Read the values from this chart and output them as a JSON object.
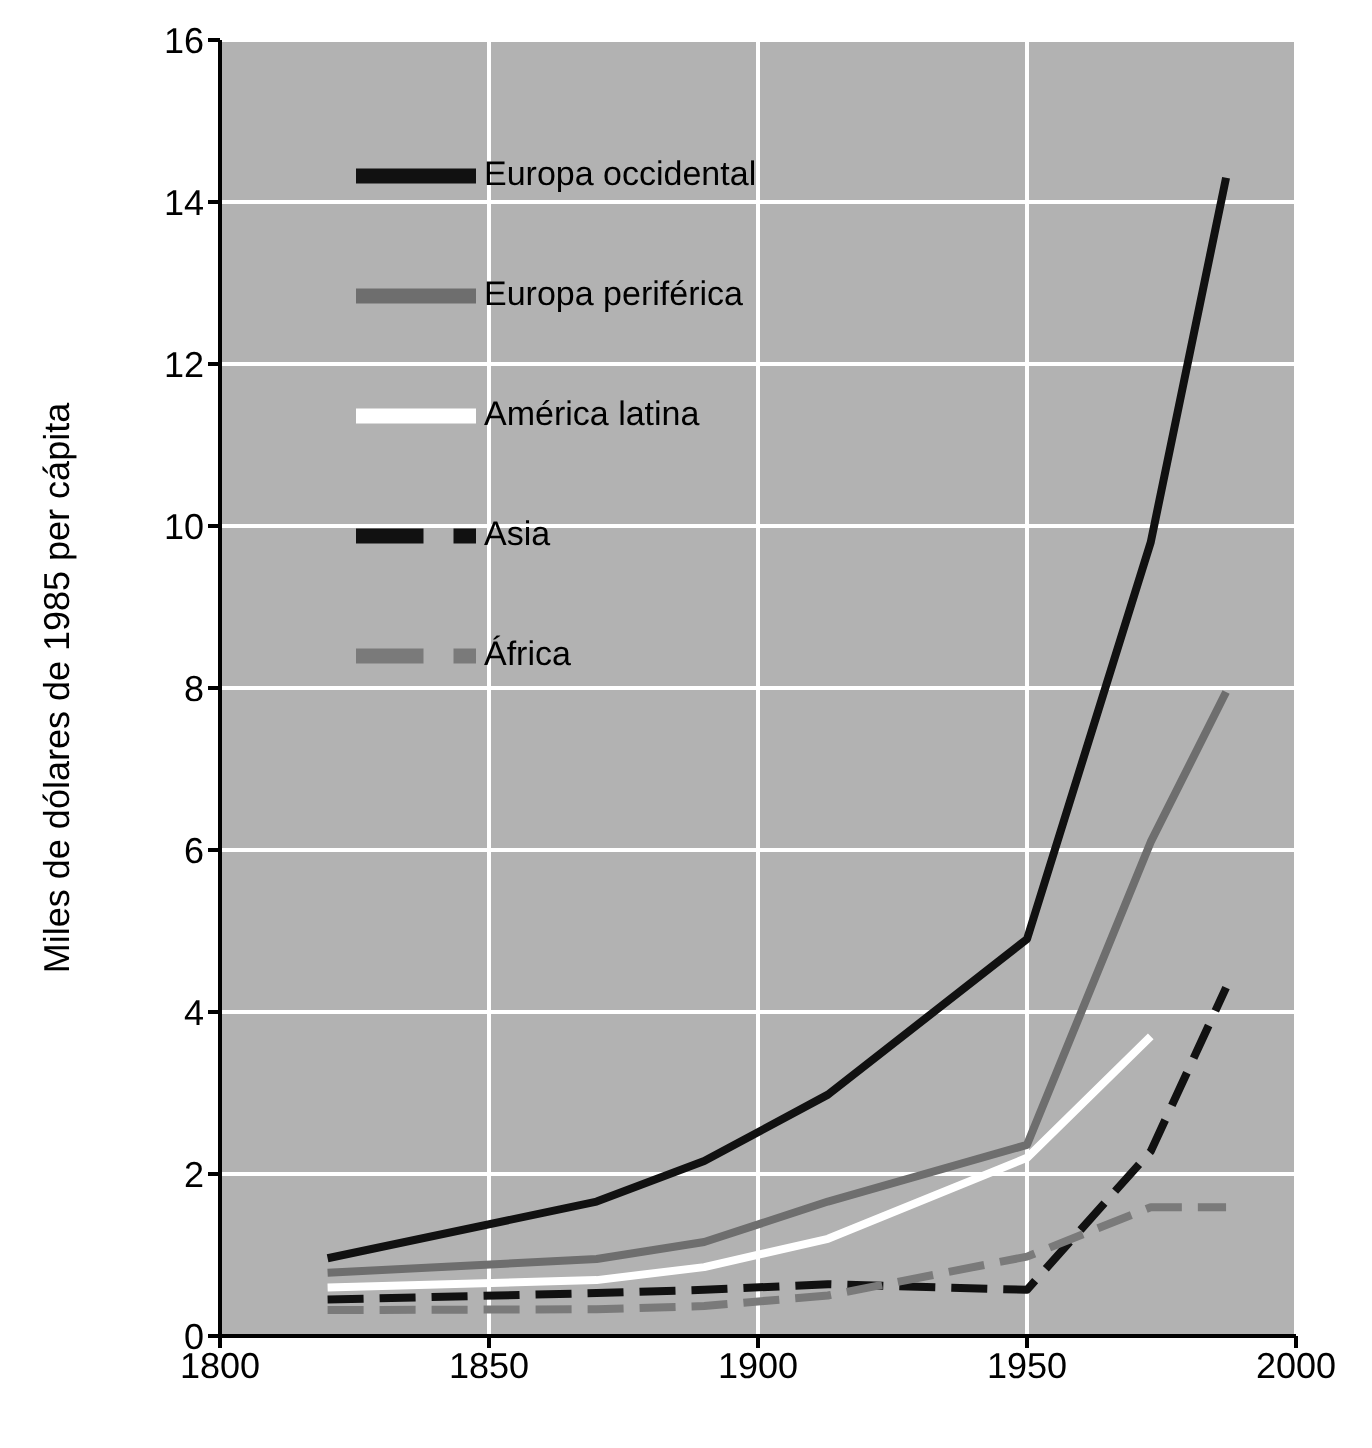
{
  "chart_data": {
    "type": "line",
    "ylabel": "Miles de dólares de 1985 per cápita",
    "x": [
      1820,
      1870,
      1890,
      1913,
      1950,
      1973,
      1987
    ],
    "series": [
      {
        "name": "Europa occidental",
        "color": "#111111",
        "line_style": "solid",
        "values": [
          0.96,
          1.66,
          2.16,
          2.98,
          4.9,
          9.8,
          14.3
        ]
      },
      {
        "name": "Europa periférica",
        "color": "#6e6e6e",
        "line_style": "solid",
        "values": [
          0.78,
          0.95,
          1.16,
          1.66,
          2.36,
          6.1,
          7.95
        ]
      },
      {
        "name": "América latina",
        "color": "#ffffff",
        "line_style": "solid",
        "values": [
          0.6,
          0.69,
          0.85,
          1.2,
          2.2,
          3.7,
          null
        ]
      },
      {
        "name": "Asia",
        "color": "#111111",
        "line_style": "dashed",
        "values": [
          0.45,
          0.53,
          0.57,
          0.64,
          0.57,
          2.28,
          4.3
        ]
      },
      {
        "name": "África",
        "color": "#7a7a7a",
        "line_style": "dashed",
        "values": [
          0.32,
          0.33,
          0.37,
          0.5,
          0.98,
          1.59,
          1.59
        ]
      }
    ],
    "xlim": [
      1800,
      2000
    ],
    "xticks": [
      1800,
      1850,
      1900,
      1950,
      2000
    ],
    "ylim": [
      0,
      16
    ],
    "yticks": [
      0,
      2,
      4,
      6,
      8,
      10,
      12,
      14,
      16
    ],
    "grid": true,
    "legend": "top left"
  }
}
